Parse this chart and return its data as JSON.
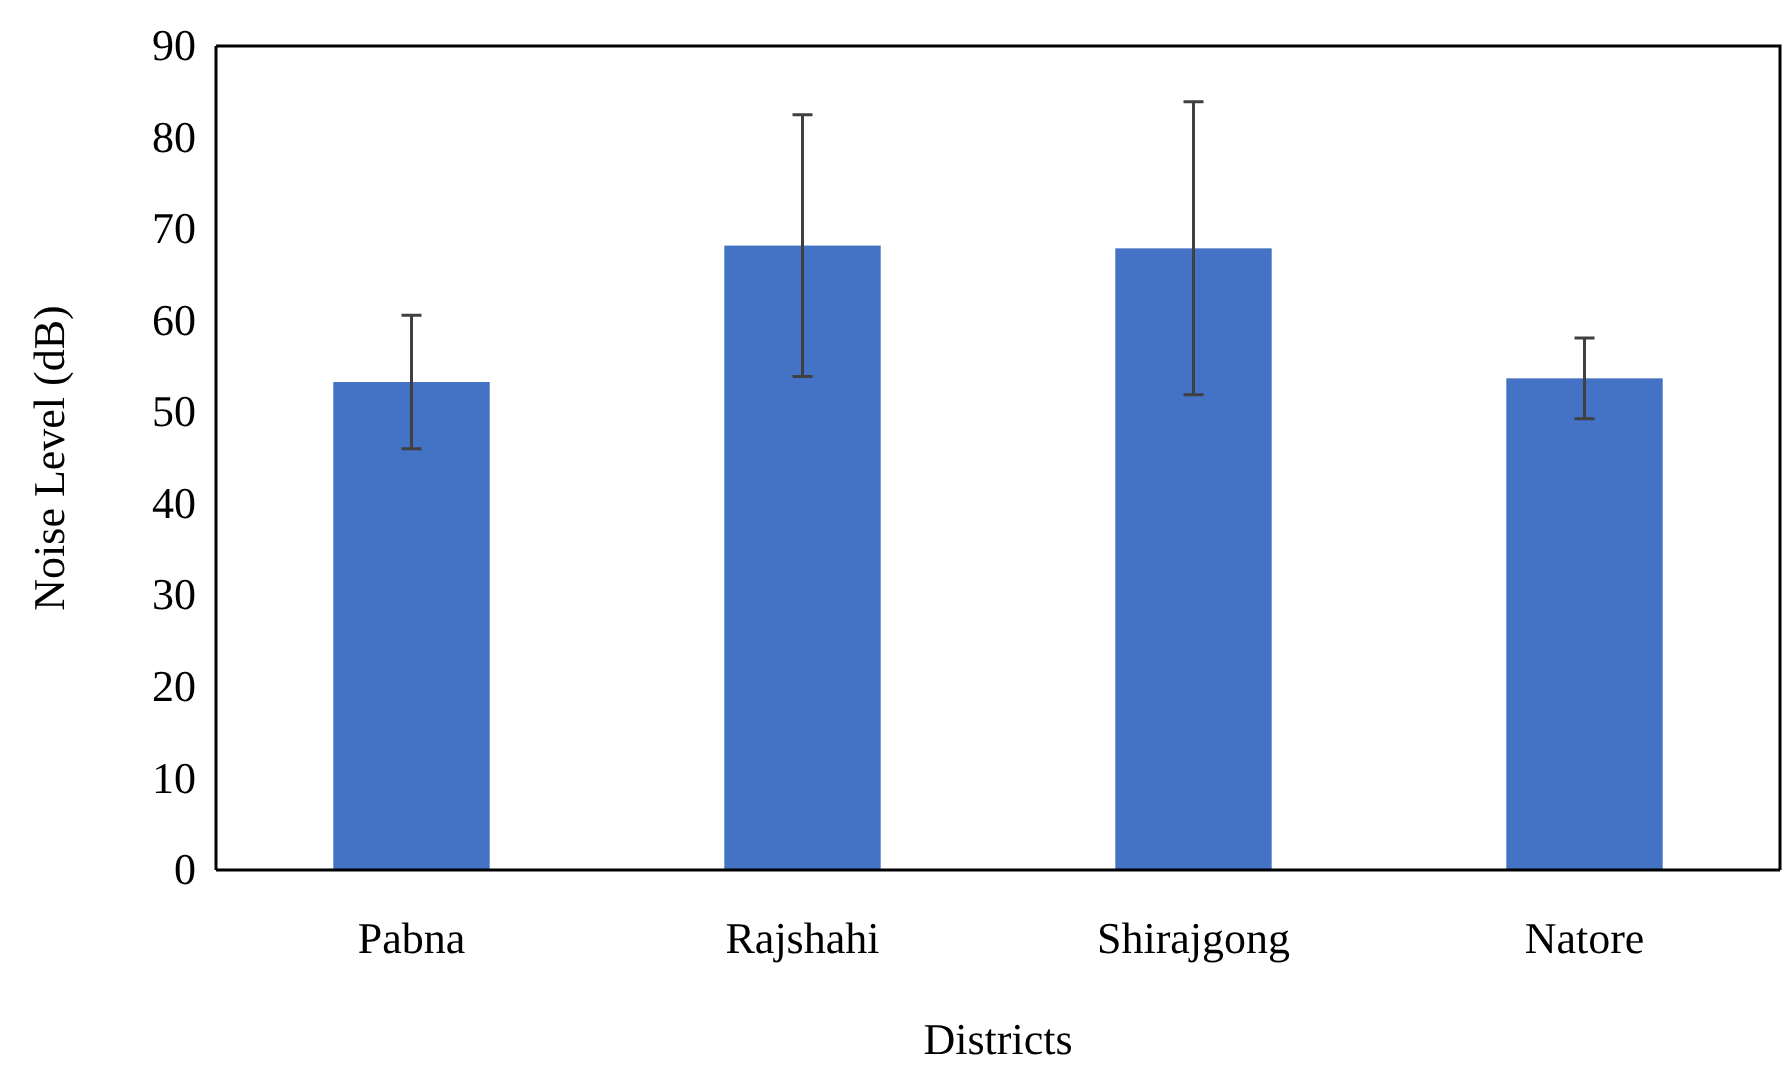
{
  "chart_data": {
    "type": "bar",
    "xlabel": "Districts",
    "ylabel": "Noise Level (dB)",
    "categories": [
      "Pabna",
      "Rajshahi",
      "Shirajgong",
      "Natore"
    ],
    "values": [
      53.3,
      68.2,
      67.9,
      53.7
    ],
    "errors": [
      7.3,
      14.3,
      16,
      4.4
    ],
    "color": "#4472c4",
    "ylim": [
      0,
      90
    ],
    "yticks": [
      0,
      10,
      20,
      30,
      40,
      50,
      60,
      70,
      80,
      90
    ],
    "grid": false
  }
}
